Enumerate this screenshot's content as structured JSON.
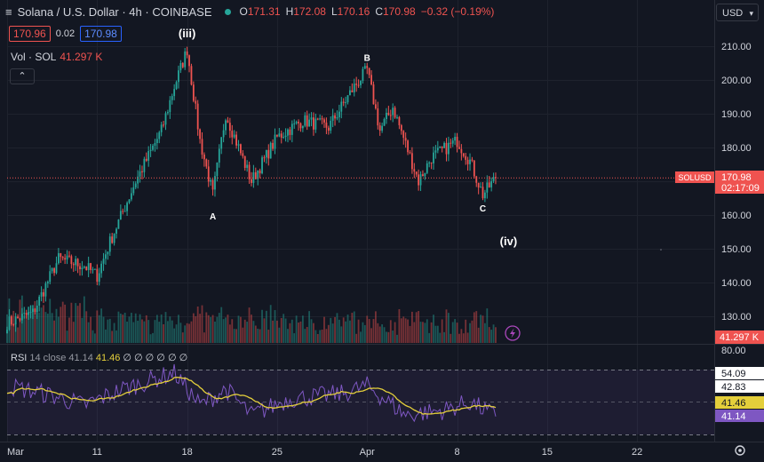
{
  "header": {
    "menu_icon": "hamburger-icon",
    "symbol_title": "Solana / U.S. Dollar · 4h · COINBASE",
    "status_color": "#26a69a",
    "o_label": "O",
    "o_value": "171.31",
    "h_label": "H",
    "h_value": "172.08",
    "l_label": "L",
    "l_value": "170.16",
    "c_label": "C",
    "c_value": "170.98",
    "change": "−0.32 (−0.19%)"
  },
  "order_boxes": {
    "sell": "170.96",
    "spread": "0.02",
    "buy": "170.98"
  },
  "volume_legend": {
    "label": "Vol · SOL",
    "value": "41.297 K"
  },
  "collapse_icon": "chevron-up-icon",
  "currency_select": "USD",
  "price_axis": {
    "ticks": [
      "210.00",
      "200.00",
      "190.00",
      "180.00",
      "170.00",
      "160.00",
      "150.00",
      "140.00",
      "130.00"
    ],
    "symbol_tag": "SOLUSD",
    "last_price": "170.98",
    "countdown": "02:17:09",
    "volume_tag": "41.297 K"
  },
  "rsi_legend": {
    "label": "RSI",
    "params": "14 close",
    "rsi_value": "41.14",
    "ma_value": "41.46",
    "zeros": "∅ ∅ ∅ ∅ ∅ ∅"
  },
  "rsi_axis": {
    "ticks": [
      "80.00",
      "54.09",
      "42.83"
    ],
    "ma_tag": "41.46",
    "rsi_tag": "41.14"
  },
  "time_axis": [
    "Mar",
    "11",
    "18",
    "25",
    "Apr",
    "8",
    "15",
    "22"
  ],
  "wave_labels": [
    "(iii)",
    "A",
    "B",
    "C",
    "(iv)"
  ],
  "colors": {
    "up": "#26a69a",
    "down": "#ef5350",
    "rsi_line": "#7e57c2",
    "rsi_ma": "#e4cf3b",
    "background": "#131722"
  },
  "chart_data": {
    "type": "candlestick",
    "timeframe": "4h",
    "x_range": [
      "2024-03-04",
      "2024-04-28"
    ],
    "price_range": [
      124,
      214
    ],
    "keypoints": [
      {
        "date": "2024-03-04",
        "price": 128
      },
      {
        "date": "2024-03-06",
        "price": 131
      },
      {
        "date": "2024-03-08",
        "price": 147
      },
      {
        "date": "2024-03-10",
        "price": 145
      },
      {
        "date": "2024-03-11",
        "price": 142
      },
      {
        "date": "2024-03-12",
        "price": 152
      },
      {
        "date": "2024-03-14",
        "price": 170
      },
      {
        "date": "2024-03-16",
        "price": 185
      },
      {
        "date": "2024-03-17",
        "price": 198
      },
      {
        "date": "2024-03-18",
        "price": 209
      },
      {
        "date": "2024-03-19",
        "price": 182
      },
      {
        "date": "2024-03-20",
        "price": 166
      },
      {
        "date": "2024-03-21",
        "price": 190
      },
      {
        "date": "2024-03-23",
        "price": 170
      },
      {
        "date": "2024-03-25",
        "price": 183
      },
      {
        "date": "2024-03-27",
        "price": 188
      },
      {
        "date": "2024-03-29",
        "price": 186
      },
      {
        "date": "2024-03-31",
        "price": 198
      },
      {
        "date": "2024-04-01",
        "price": 203
      },
      {
        "date": "2024-04-02",
        "price": 185
      },
      {
        "date": "2024-04-03",
        "price": 192
      },
      {
        "date": "2024-04-05",
        "price": 170
      },
      {
        "date": "2024-04-06",
        "price": 177
      },
      {
        "date": "2024-04-08",
        "price": 182
      },
      {
        "date": "2024-04-09",
        "price": 176
      },
      {
        "date": "2024-04-10",
        "price": 166
      },
      {
        "date": "2024-04-11",
        "price": 170.98
      }
    ],
    "rsi_range": [
      0,
      100
    ],
    "rsi_keypoints": [
      {
        "date": "2024-03-04",
        "rsi": 60
      },
      {
        "date": "2024-03-07",
        "rsi": 55
      },
      {
        "date": "2024-03-10",
        "rsi": 48
      },
      {
        "date": "2024-03-13",
        "rsi": 58
      },
      {
        "date": "2024-03-17",
        "rsi": 68
      },
      {
        "date": "2024-03-19",
        "rsi": 48
      },
      {
        "date": "2024-03-21",
        "rsi": 58
      },
      {
        "date": "2024-03-23",
        "rsi": 42
      },
      {
        "date": "2024-03-26",
        "rsi": 52
      },
      {
        "date": "2024-03-30",
        "rsi": 55
      },
      {
        "date": "2024-04-01",
        "rsi": 60
      },
      {
        "date": "2024-04-04",
        "rsi": 42
      },
      {
        "date": "2024-04-07",
        "rsi": 45
      },
      {
        "date": "2024-04-09",
        "rsi": 50
      },
      {
        "date": "2024-04-11",
        "rsi": 41.14
      }
    ],
    "rsi_levels": [
      70,
      50,
      30
    ],
    "wave_points": [
      {
        "label": "(iii)",
        "date": "2024-03-18",
        "price": 209
      },
      {
        "label": "A",
        "date": "2024-03-20",
        "price": 166
      },
      {
        "label": "B",
        "date": "2024-04-01",
        "price": 203
      },
      {
        "label": "C",
        "date": "2024-04-10",
        "price": 166
      },
      {
        "label": "(iv)",
        "date": "2024-04-12",
        "price": 161
      }
    ]
  }
}
